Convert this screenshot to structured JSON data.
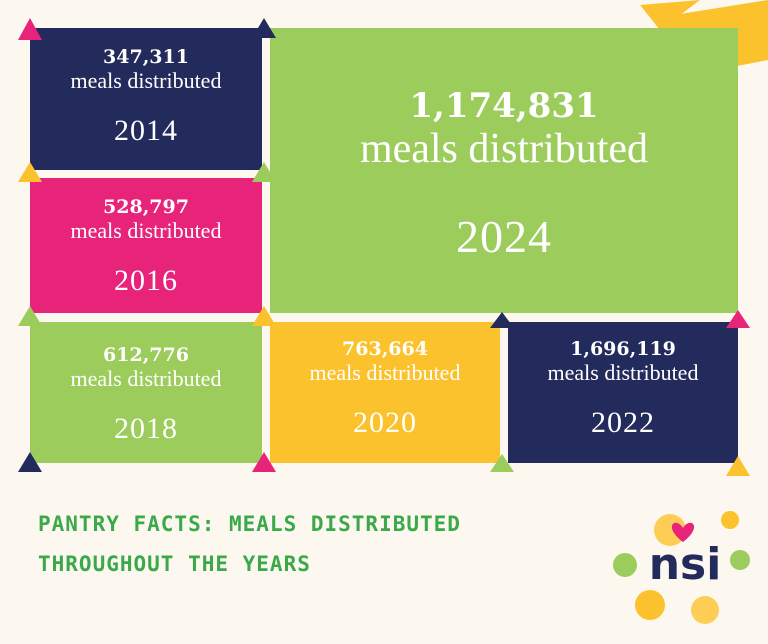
{
  "tiles": [
    {
      "number": "347,311",
      "label": "meals distributed",
      "year": "2014"
    },
    {
      "number": "528,797",
      "label": "meals distributed",
      "year": "2016"
    },
    {
      "number": "1,174,831",
      "label": "meals distributed",
      "year": "2024"
    },
    {
      "number": "612,776",
      "label": "meals distributed",
      "year": "2018"
    },
    {
      "number": "763,664",
      "label": "meals distributed",
      "year": "2020"
    },
    {
      "number": "1,696,119",
      "label": "meals distributed",
      "year": "2022"
    }
  ],
  "footer": {
    "title_line1": "PANTRY FACTS: MEALS DISTRIBUTED",
    "title_line2": "THROUGHOUT THE YEARS"
  },
  "logo": {
    "text": "nsi"
  }
}
